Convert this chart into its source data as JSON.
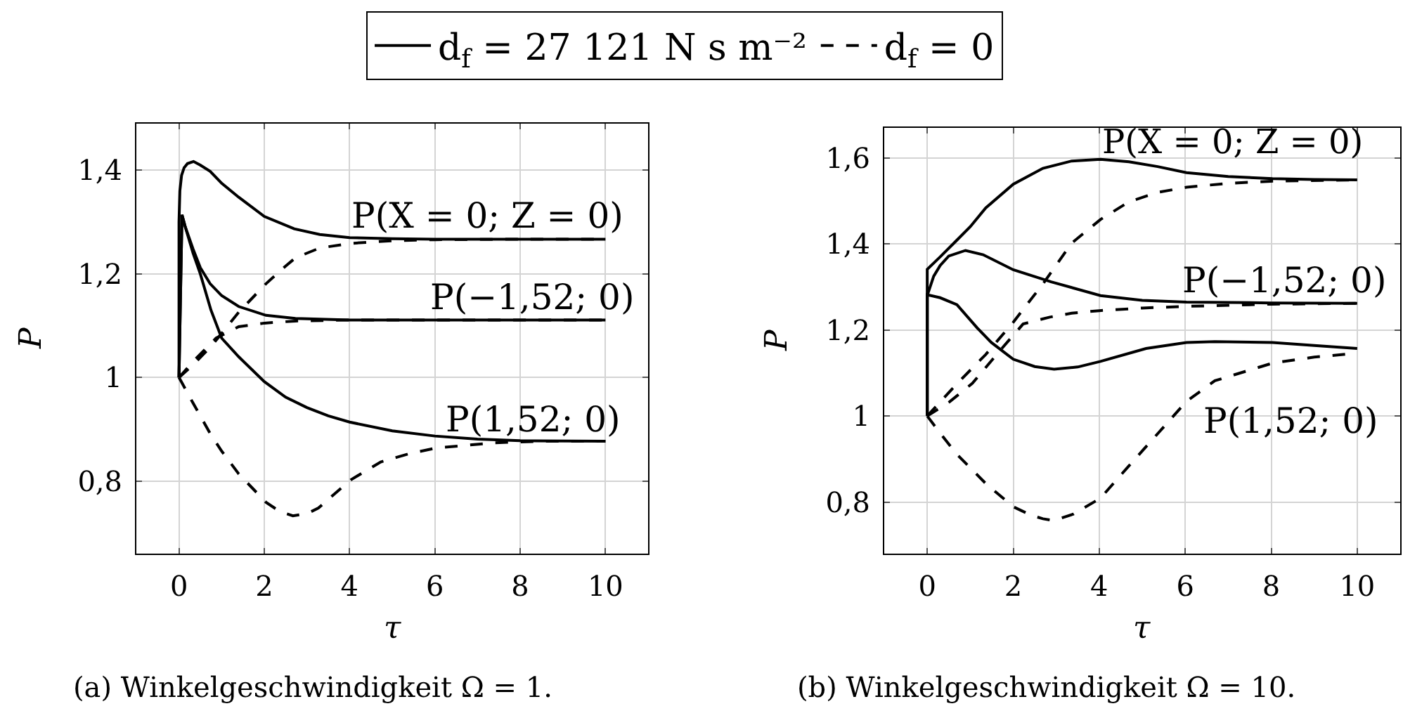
{
  "chart_data": [
    {
      "type": "line",
      "xlabel": "τ",
      "ylabel": "P",
      "xlim": [
        -1,
        11
      ],
      "ylim": [
        0.66,
        1.49
      ],
      "xticks": [
        0,
        2,
        4,
        6,
        8,
        10
      ],
      "yticks": [
        {
          "value": 0.8,
          "label": "0,8"
        },
        1,
        {
          "value": 1.2,
          "label": "1,2"
        },
        {
          "value": 1.4,
          "label": "1,4"
        }
      ],
      "grid": true,
      "legend": "top",
      "series": [
        {
          "name": "d$_{f}$ = 27 121 N s m⁻²",
          "color": "#000000",
          "line_style": "solid",
          "x": [
            0,
            0,
            0.02,
            0.06,
            0.12,
            0.2,
            0.34,
            0.5,
            0.73,
            1.0,
            1.4,
            2.0,
            2.7,
            3.3,
            4.0,
            5.0,
            6.0,
            8.0,
            10.0
          ],
          "values": [
            1,
            1.3,
            1.36,
            1.39,
            1.405,
            1.413,
            1.417,
            1.41,
            1.398,
            1.375,
            1.348,
            1.311,
            1.287,
            1.276,
            1.27,
            1.268,
            1.267,
            1.267,
            1.267
          ]
        },
        {
          "color": "#000000",
          "line_style": "solid",
          "x": [
            0,
            0.07,
            0.15,
            0.33,
            0.5,
            0.73,
            1.0,
            1.4,
            2.04,
            2.73,
            4.0,
            6.0,
            10.0
          ],
          "values": [
            1,
            1.314,
            1.29,
            1.248,
            1.212,
            1.181,
            1.158,
            1.137,
            1.12,
            1.114,
            1.111,
            1.111,
            1.111
          ]
        },
        {
          "color": "#000000",
          "line_style": "solid",
          "x": [
            0,
            0.07,
            0.15,
            0.33,
            0.5,
            0.75,
            1.0,
            1.4,
            2.0,
            2.5,
            3.0,
            3.5,
            4.0,
            5.0,
            6.0,
            7.0,
            8.0,
            10.0
          ],
          "values": [
            1,
            1.314,
            1.29,
            1.24,
            1.2,
            1.13,
            1.076,
            1.04,
            0.992,
            0.962,
            0.942,
            0.926,
            0.914,
            0.897,
            0.887,
            0.881,
            0.878,
            0.877
          ]
        },
        {
          "name": "d$_{f}$ = 0",
          "color": "#000000",
          "line_style": "dashed",
          "x": [
            0,
            0.3,
            0.74,
            1.0,
            1.4,
            2.04,
            2.5,
            2.73,
            3.3,
            4.05,
            5.0,
            6.0,
            8.0,
            10.0
          ],
          "values": [
            1,
            1.022,
            1.059,
            1.085,
            1.126,
            1.181,
            1.215,
            1.231,
            1.25,
            1.259,
            1.264,
            1.266,
            1.267,
            1.267
          ]
        },
        {
          "color": "#000000",
          "line_style": "dashed",
          "x": [
            0,
            0.38,
            0.87,
            1.4,
            2.0,
            2.73,
            4.0,
            6.0,
            10.0
          ],
          "values": [
            1,
            1.035,
            1.076,
            1.098,
            1.105,
            1.109,
            1.111,
            1.111,
            1.111
          ]
        },
        {
          "color": "#000000",
          "line_style": "dashed",
          "x": [
            0,
            0.3,
            0.73,
            1.0,
            1.4,
            2.04,
            2.35,
            2.67,
            3.0,
            3.27,
            3.6,
            4.04,
            4.73,
            5.4,
            6.04,
            7.4,
            8.5,
            10.0
          ],
          "values": [
            1,
            0.955,
            0.892,
            0.858,
            0.814,
            0.759,
            0.742,
            0.733,
            0.737,
            0.748,
            0.772,
            0.803,
            0.837,
            0.853,
            0.864,
            0.874,
            0.877,
            0.877
          ]
        }
      ],
      "annotations": [
        "P(X = 0; Z = 0)",
        "P(−1,52; 0)",
        "P(1,52; 0)",
        "(a) Winkelgeschwindigkeit Ω = 1."
      ]
    },
    {
      "type": "line",
      "xlabel": "τ",
      "ylabel": "P",
      "xlim": [
        -1,
        11
      ],
      "ylim": [
        0.68,
        1.67
      ],
      "xticks": [
        0,
        2,
        4,
        6,
        8,
        10
      ],
      "yticks": [
        {
          "value": 0.8,
          "label": "0,8"
        },
        1,
        {
          "value": 1.2,
          "label": "1,2"
        },
        {
          "value": 1.4,
          "label": "1,4"
        },
        {
          "value": 1.6,
          "label": "1,6"
        }
      ],
      "grid": true,
      "legend": "top",
      "series": [
        {
          "name": "d$_{f}$ = 27 121 N s m⁻²",
          "color": "#000000",
          "line_style": "solid",
          "x": [
            0,
            0,
            0.3,
            0.69,
            1.0,
            1.36,
            2.0,
            2.69,
            3.36,
            4.03,
            4.69,
            5.36,
            6.03,
            7.0,
            8.03,
            9.0,
            10.0
          ],
          "values": [
            1,
            1.341,
            1.37,
            1.409,
            1.44,
            1.484,
            1.539,
            1.576,
            1.593,
            1.597,
            1.591,
            1.58,
            1.566,
            1.557,
            1.552,
            1.55,
            1.549
          ]
        },
        {
          "color": "#000000",
          "line_style": "solid",
          "x": [
            0,
            0,
            0.15,
            0.3,
            0.5,
            0.89,
            1.3,
            2.0,
            2.88,
            4.03,
            5.0,
            6.03,
            8.0,
            10.0
          ],
          "values": [
            1,
            1.28,
            1.325,
            1.35,
            1.372,
            1.385,
            1.375,
            1.34,
            1.312,
            1.28,
            1.269,
            1.265,
            1.263,
            1.262
          ]
        },
        {
          "color": "#000000",
          "line_style": "solid",
          "x": [
            0,
            0,
            0.3,
            0.69,
            1.16,
            1.49,
            2.0,
            2.5,
            2.95,
            3.5,
            4.03,
            5.09,
            6.03,
            6.69,
            8.03,
            9.0,
            10.0
          ],
          "values": [
            1,
            1.282,
            1.275,
            1.259,
            1.205,
            1.171,
            1.132,
            1.115,
            1.109,
            1.114,
            1.127,
            1.157,
            1.171,
            1.173,
            1.171,
            1.164,
            1.157
          ]
        },
        {
          "name": "d$_{f}$ = 0",
          "color": "#000000",
          "line_style": "dashed",
          "x": [
            0,
            0.69,
            1.36,
            2.0,
            2.69,
            3.36,
            4.03,
            4.69,
            5.36,
            6.03,
            7.0,
            8.0,
            10.0
          ],
          "values": [
            1,
            1.075,
            1.143,
            1.218,
            1.307,
            1.402,
            1.457,
            1.498,
            1.52,
            1.532,
            1.541,
            1.546,
            1.549
          ]
        },
        {
          "color": "#000000",
          "line_style": "dashed",
          "x": [
            0,
            0.52,
            1.05,
            1.7,
            2.23,
            2.85,
            3.36,
            4.0,
            5.0,
            6.03,
            8.0,
            10.0
          ],
          "values": [
            1,
            1.033,
            1.076,
            1.153,
            1.214,
            1.23,
            1.239,
            1.245,
            1.251,
            1.255,
            1.26,
            1.262
          ]
        },
        {
          "color": "#000000",
          "line_style": "dashed",
          "x": [
            0,
            0.3,
            0.69,
            1.36,
            2.0,
            2.4,
            2.69,
            2.95,
            3.4,
            4.03,
            4.69,
            5.36,
            6.03,
            6.69,
            8.03,
            9.0,
            10.0
          ],
          "values": [
            1,
            0.96,
            0.911,
            0.843,
            0.789,
            0.77,
            0.761,
            0.757,
            0.772,
            0.809,
            0.884,
            0.959,
            1.034,
            1.082,
            1.123,
            1.137,
            1.146
          ]
        }
      ],
      "annotations": [
        "P(X = 0; Z = 0)",
        "P(−1,52; 0)",
        "P(1,52; 0)",
        "(b) Winkelgeschwindigkeit Ω = 10."
      ]
    }
  ]
}
